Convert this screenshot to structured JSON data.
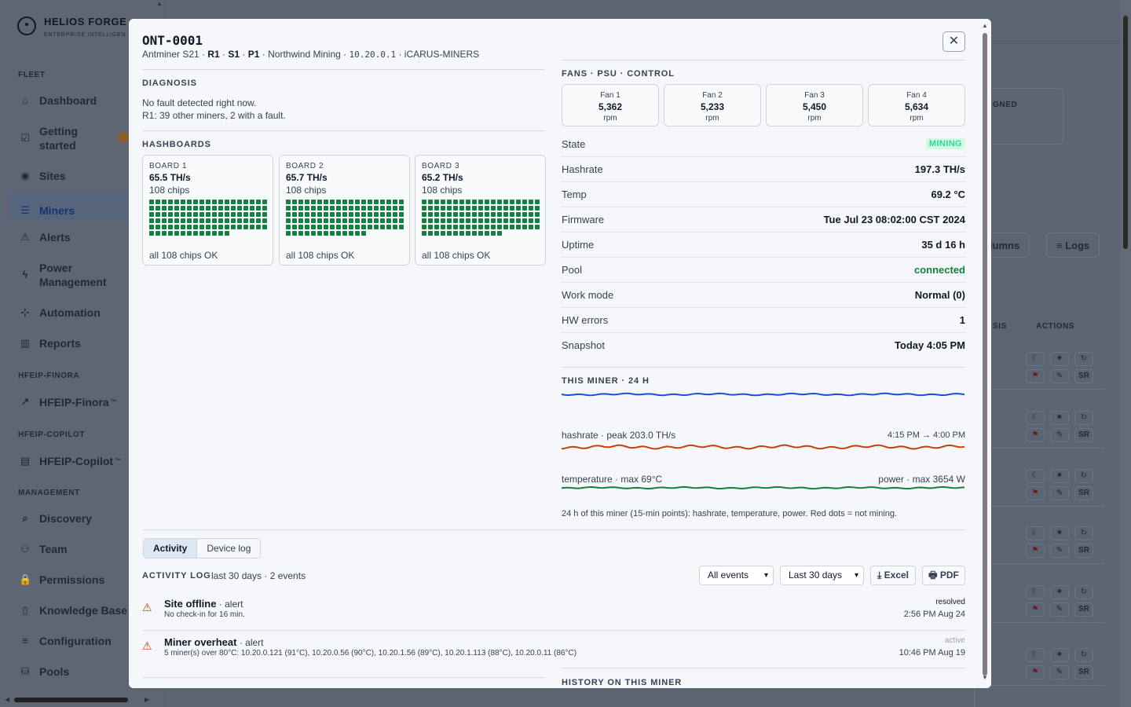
{
  "brand": {
    "name": "HELIOS FORGE",
    "tagline": "ENTERPRISE INTELLIGEN"
  },
  "sidebar": {
    "sections": [
      {
        "title": "FLEET"
      },
      {
        "title": "HFEIP-FINORA"
      },
      {
        "title": "HFEIP-COPILOT"
      },
      {
        "title": "MANAGEMENT"
      }
    ],
    "items": [
      {
        "label": "Dashboard",
        "icon": "home-icon"
      },
      {
        "label": "Getting started",
        "icon": "checklist-icon"
      },
      {
        "label": "Sites",
        "icon": "map-pin-icon"
      },
      {
        "label": "Miners",
        "icon": "server-icon"
      },
      {
        "label": "Alerts",
        "icon": "warning-icon"
      },
      {
        "label": "Power Management",
        "icon": "bolt-icon"
      },
      {
        "label": "Automation",
        "icon": "automation-icon"
      },
      {
        "label": "Reports",
        "icon": "chart-icon"
      },
      {
        "label": "HFEIP-Finora",
        "icon": "trend-icon",
        "sup": "™"
      },
      {
        "label": "HFEIP-Copilot",
        "icon": "chat-icon",
        "sup": "™"
      },
      {
        "label": "Discovery",
        "icon": "search-icon"
      },
      {
        "label": "Team",
        "icon": "team-icon"
      },
      {
        "label": "Permissions",
        "icon": "lock-icon"
      },
      {
        "label": "Knowledge Base",
        "icon": "book-icon"
      },
      {
        "label": "Configuration",
        "icon": "menu-icon"
      },
      {
        "label": "Pools",
        "icon": "database-icon"
      }
    ]
  },
  "background": {
    "card_label": "GNED",
    "columns_btn": "olumns",
    "logs_btn": "≡ Logs",
    "col_diag": "SIS",
    "col_actions": "ACTIONS"
  },
  "modal": {
    "title": "ONT-0001",
    "subtitle": {
      "model": "Antminer S21",
      "r": "R1",
      "s": "S1",
      "p": "P1",
      "owner": "Northwind Mining",
      "ip": "10.20.0.1",
      "pool": "iCARUS-MINERS"
    },
    "close_label": "✕",
    "diagnosis": {
      "title": "DIAGNOSIS",
      "line1": "No fault detected right now.",
      "line2": "R1: 39 other miners, 2 with a fault."
    },
    "hashboards": {
      "title": "HASHBOARDS",
      "boards": [
        {
          "label": "BOARD 1",
          "hashrate": "65.5 TH/s",
          "chips": "108 chips",
          "status": "all 108 chips OK",
          "chip_count": 108
        },
        {
          "label": "BOARD 2",
          "hashrate": "65.7 TH/s",
          "chips": "108 chips",
          "status": "all 108 chips OK",
          "chip_count": 108
        },
        {
          "label": "BOARD 3",
          "hashrate": "65.2 TH/s",
          "chips": "108 chips",
          "status": "all 108 chips OK",
          "chip_count": 108
        }
      ]
    },
    "fans": {
      "title": "FANS · PSU · CONTROL",
      "items": [
        {
          "label": "Fan 1",
          "value": "5,362",
          "unit": "rpm"
        },
        {
          "label": "Fan 2",
          "value": "5,233",
          "unit": "rpm"
        },
        {
          "label": "Fan 3",
          "value": "5,450",
          "unit": "rpm"
        },
        {
          "label": "Fan 4",
          "value": "5,634",
          "unit": "rpm"
        }
      ]
    },
    "stats": [
      {
        "key": "State",
        "value": "MINING",
        "kind": "badge"
      },
      {
        "key": "Hashrate",
        "value": "197.3 TH/s"
      },
      {
        "key": "Temp",
        "value": "69.2 °C"
      },
      {
        "key": "Firmware",
        "value": "Tue Jul 23 08:02:00 CST 2024"
      },
      {
        "key": "Uptime",
        "value": "35 d 16 h"
      },
      {
        "key": "Pool",
        "value": "connected",
        "kind": "green"
      },
      {
        "key": "Work mode",
        "value": "Normal (0)"
      },
      {
        "key": "HW errors",
        "value": "1"
      },
      {
        "key": "Snapshot",
        "value": "Today 4:05 PM"
      }
    ],
    "trend": {
      "title": "THIS MINER · 24 H",
      "hashrate_label": "hashrate · peak 203.0 TH/s",
      "range_label": "4:15 PM → 4:00 PM",
      "temp_label": "temperature · max 69°C",
      "power_label": "power · max 3654 W",
      "note": "24 h of this miner (15-min points): hashrate, temperature, power. Red dots = not mining.",
      "colors": {
        "hashrate": "#1d4ed8",
        "temperature": "#c2410c",
        "power": "#15803d"
      }
    },
    "tabs": [
      {
        "label": "Activity"
      },
      {
        "label": "Device log"
      }
    ],
    "activity": {
      "title": "ACTIVITY LOG",
      "meta": "last 30 days · 2 events",
      "filter_events": "All events",
      "filter_range": "Last 30 days",
      "excel_label": "⤓ Excel",
      "pdf_label": "🖶 PDF",
      "events": [
        {
          "title": "Site offline",
          "type": "· alert",
          "detail": "No check-in for 16 min.",
          "status": "resolved",
          "time": "2:56 PM Aug 24"
        },
        {
          "title": "Miner overheat",
          "type": "· alert",
          "detail": "5 miner(s) over 80°C: 10.20.0.121 (91°C), 10.20.0.56 (90°C), 10.20.1.56 (89°C), 10.20.1.113 (88°C), 10.20.0.11 (86°C)",
          "status": "active",
          "time": "10:46 PM Aug 19"
        }
      ]
    },
    "history_title": "HISTORY ON THIS MINER"
  }
}
